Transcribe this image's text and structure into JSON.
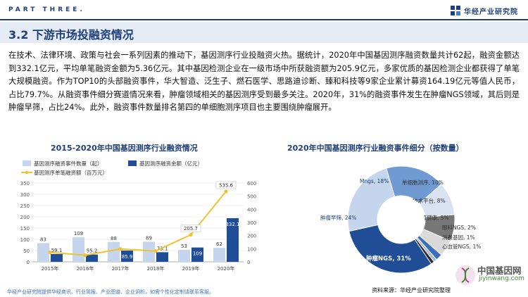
{
  "header": {
    "part_label": "PART THREE.",
    "brand": "华经产业研究院"
  },
  "section": {
    "title": "3.2 下游市场投融资情况"
  },
  "body_text": "在技术、法律环境、政策与社会一系列因素的推动下，基因测序行业投融资火热。据统计，2020年中国基因测序融资数量共计62起，融资金额达到332.1亿元，平均单笔融资金额为5.36亿元。其中基因检测企业在一级市场中所获融资额为205.9亿元，多家优质的基因检测企业都获得了单笔大规模融资。作为TOP10的头部融资事件，华大智造、泛生子、燃石医学、思路迪诊断、臻和科技等9家企业累计募资164.19亿元等值人民币，占比79.7%。从融资事件细分赛道情况来看，肿瘤领域相关的基因测序受到最多关注。2020年，31%的融资事件发生在肿瘤NGS领域，其后则是肿瘤早筛，占比24%。此外，融资事件数量排名第四的单细胞测序项目也主要围绕肿瘤展开。",
  "colors": {
    "navy": "#1e3f7a",
    "bar_light": "#c5d5ee",
    "bar_dark": "#1f4e96",
    "line": "#f2c12e"
  },
  "chart_data": [
    {
      "type": "bar",
      "title": "2015-2020年中国基因测序行业融资情况",
      "categories": [
        "2015年",
        "2016年",
        "2017年",
        "2018年",
        "2019年",
        "2020年"
      ],
      "series": [
        {
          "name": "基因测序融资事件数量（起）",
          "kind": "bar",
          "axis": "left",
          "values": [
            83,
            109,
            88,
            89,
            53,
            62
          ]
        },
        {
          "name": "基因测序融资金额（亿元）",
          "kind": "bar",
          "axis": "right",
          "values": [
            59.1,
            55.2,
            85.9,
            73.1,
            109,
            332.1
          ]
        },
        {
          "name": "基因测序单笔融资额（百万元）",
          "kind": "line",
          "axis": "right",
          "values": [
            71.2,
            50.6,
            97.6,
            82.1,
            205.7,
            535.6
          ]
        }
      ],
      "y_left": {
        "min": 0,
        "max": 350,
        "ticks": [
          "0",
          "50",
          "100",
          "150",
          "200",
          "250",
          "300",
          "350"
        ]
      },
      "y_right": {
        "min": 0,
        "max": 600,
        "ticks": [
          "0",
          "100",
          "200",
          "300",
          "400",
          "500",
          "600"
        ]
      },
      "bar_labels_light": [
        "83",
        "109",
        "88",
        "89",
        "53",
        "62"
      ],
      "bar_labels_dark": [
        "59.1",
        "55.2",
        "85.9",
        "73.1",
        "109",
        "332.1"
      ],
      "line_labels": [
        "205.7",
        "535.6"
      ],
      "legend": "top"
    },
    {
      "type": "pie",
      "title": "2020年中国基因测序行业融资事件细分（按数量）",
      "slices": [
        {
          "label": "肿瘤NGS, 31%",
          "value": 31,
          "color": "#1f4e96"
        },
        {
          "label": "肿瘤早筛, 24%",
          "value": 24,
          "color": "#c5d5ee"
        },
        {
          "label": "Mngs, 18%",
          "value": 18,
          "color": "#6f9ad2"
        },
        {
          "label": "单细胞测序, 10%",
          "value": 10,
          "color": "#d8e2f0"
        },
        {
          "label": "技术平台, 8%",
          "value": 8,
          "color": "#777777"
        },
        {
          "label": "生殖健康, 5%",
          "value": 5,
          "color": "#d9d9d9"
        },
        {
          "label": "眼科NGS, 2%",
          "value": 2,
          "color": "#3c6fb6"
        },
        {
          "label": "消费基因, 1%",
          "value": 1,
          "color": "#9fb9df"
        },
        {
          "label": "心血管NGS, 1%",
          "value": 1,
          "color": "#2a2a2a"
        }
      ]
    }
  ],
  "footer": {
    "left_note": "华经产业研究院提供华经商讯、行业简报、产业图谱、企业洞析，如需个性化定制请联系客服。",
    "source": "资料来源：华经产业研究院整理",
    "site_cn": "中国基因网",
    "site_en": "jiyinwang.com"
  }
}
